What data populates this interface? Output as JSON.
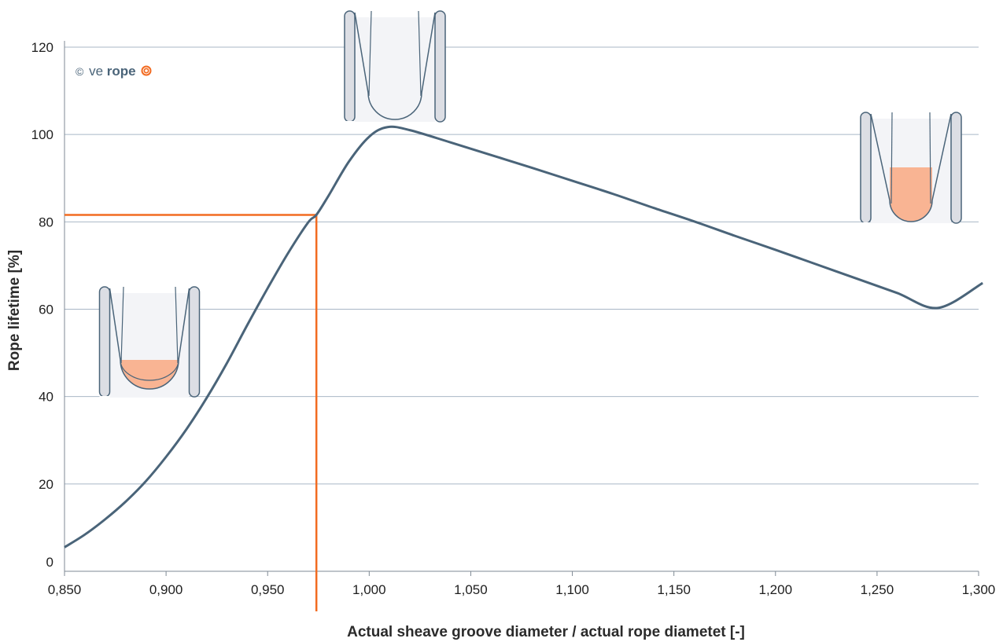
{
  "chart_data": {
    "type": "line",
    "title": "",
    "xlabel": "Actual sheave groove diameter / actual rope diametet [-]",
    "ylabel": "Rope lifetime [%]",
    "xlim": [
      0.85,
      1.3
    ],
    "ylim": [
      0,
      120
    ],
    "x_tick_labels": [
      "0,850",
      "0,900",
      "0,950",
      "1,000",
      "1,050",
      "1,100",
      "1,150",
      "1,200",
      "1,250",
      "1,300"
    ],
    "y_tick_labels": [
      "0",
      "20",
      "40",
      "60",
      "80",
      "100",
      "120"
    ],
    "grid": "horizontal",
    "series": [
      {
        "color": "#4a6479",
        "x": [
          0.85,
          0.86,
          0.87,
          0.88,
          0.89,
          0.9,
          0.91,
          0.92,
          0.93,
          0.94,
          0.95,
          0.96,
          0.97,
          0.974,
          0.98,
          0.99,
          1.0,
          1.009,
          1.02,
          1.04,
          1.06,
          1.08,
          1.1,
          1.12,
          1.14,
          1.16,
          1.18,
          1.2,
          1.22,
          1.24,
          1.26,
          1.28,
          1.302
        ],
        "y": [
          5.5,
          8.4,
          11.9,
          15.9,
          20.6,
          26.2,
          32.5,
          39.7,
          47.7,
          56.4,
          64.8,
          72.8,
          79.9,
          81.6,
          86.0,
          93.8,
          99.5,
          101.7,
          101.0,
          98.2,
          95.3,
          92.4,
          89.4,
          86.4,
          83.2,
          80.1,
          76.8,
          73.6,
          70.3,
          67.0,
          63.7,
          60.3,
          66.0
        ]
      }
    ],
    "reference": {
      "x": 0.974,
      "y": 81.6,
      "color": "#f26b21"
    },
    "annotations": [
      {
        "type": "groove-illustration",
        "variant": "narrow-groove-rope-pinched"
      },
      {
        "type": "groove-illustration",
        "variant": "optimal-groove"
      },
      {
        "type": "groove-illustration",
        "variant": "wide-groove-rope-flattened"
      }
    ],
    "logo": {
      "copyright": "©",
      "text_ve": "ve",
      "text_rope": "rope",
      "color_primary": "#4a6479",
      "color_accent": "#f26b21"
    }
  },
  "colors": {
    "grid": "#a9b7c6",
    "axis": "#7f8a94",
    "curve": "#4a6479",
    "highlight": "#f26b21",
    "groove_fill": "#f3f4f7",
    "wall_fill": "#dcdee4",
    "wear_fill": "#f9b493"
  }
}
